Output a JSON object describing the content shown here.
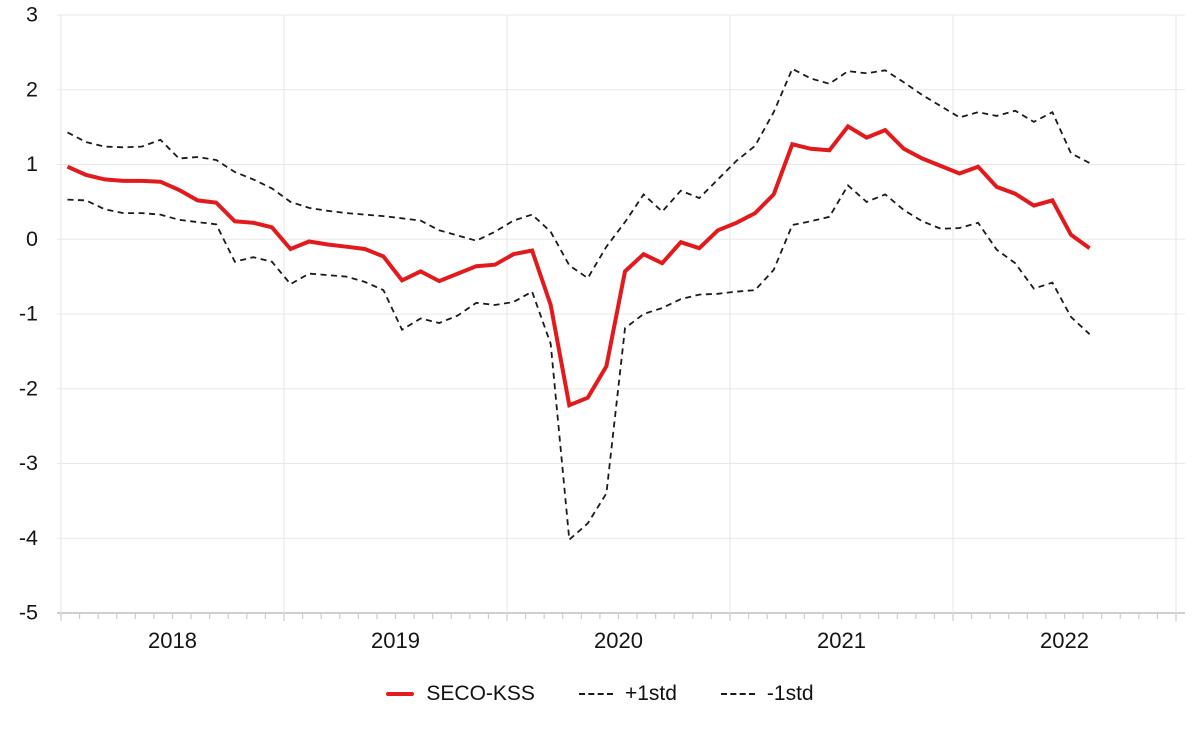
{
  "chart_data": {
    "type": "line",
    "title": "",
    "xlabel": "",
    "ylabel": "",
    "ylim": [
      -5,
      3
    ],
    "y_ticks": [
      3,
      2,
      1,
      0,
      -1,
      -2,
      -3,
      -4,
      -5
    ],
    "x_tick_years": [
      "2018",
      "2019",
      "2020",
      "2021",
      "2022"
    ],
    "grid": true,
    "legend_position": "bottom",
    "x": [
      "2018-01",
      "2018-02",
      "2018-03",
      "2018-04",
      "2018-05",
      "2018-06",
      "2018-07",
      "2018-08",
      "2018-09",
      "2018-10",
      "2018-11",
      "2018-12",
      "2019-01",
      "2019-02",
      "2019-03",
      "2019-04",
      "2019-05",
      "2019-06",
      "2019-07",
      "2019-08",
      "2019-09",
      "2019-10",
      "2019-11",
      "2019-12",
      "2020-01",
      "2020-02",
      "2020-03",
      "2020-04",
      "2020-05",
      "2020-06",
      "2020-07",
      "2020-08",
      "2020-09",
      "2020-10",
      "2020-11",
      "2020-12",
      "2021-01",
      "2021-02",
      "2021-03",
      "2021-04",
      "2021-05",
      "2021-06",
      "2021-07",
      "2021-08",
      "2021-09",
      "2021-10",
      "2021-11",
      "2021-12",
      "2022-01",
      "2022-02",
      "2022-03",
      "2022-04",
      "2022-05",
      "2022-06",
      "2022-07",
      "2022-08"
    ],
    "series": [
      {
        "name": "SECO-KSS",
        "slug": "seco-kss",
        "style": "solid",
        "color": "#e31a1c",
        "width": 4,
        "values": [
          0.97,
          0.86,
          0.8,
          0.78,
          0.78,
          0.77,
          0.66,
          0.52,
          0.49,
          0.24,
          0.22,
          0.16,
          -0.13,
          -0.03,
          -0.07,
          -0.1,
          -0.13,
          -0.23,
          -0.55,
          -0.43,
          -0.56,
          -0.46,
          -0.36,
          -0.34,
          -0.2,
          -0.15,
          -0.88,
          -2.22,
          -2.12,
          -1.7,
          -0.43,
          -0.2,
          -0.32,
          -0.04,
          -0.12,
          0.12,
          0.22,
          0.35,
          0.6,
          1.27,
          1.21,
          1.19,
          1.51,
          1.36,
          1.46,
          1.21,
          1.08,
          0.98,
          0.88,
          0.97,
          0.7,
          0.61,
          0.45,
          0.52,
          0.06,
          -0.12
        ]
      },
      {
        "name": "+1std",
        "slug": "plus1std",
        "style": "dashed",
        "color": "#1a1a1a",
        "width": 1.8,
        "values": [
          1.43,
          1.3,
          1.24,
          1.23,
          1.24,
          1.33,
          1.08,
          1.1,
          1.06,
          0.9,
          0.8,
          0.68,
          0.5,
          0.42,
          0.38,
          0.35,
          0.33,
          0.31,
          0.28,
          0.25,
          0.12,
          0.05,
          -0.02,
          0.1,
          0.25,
          0.33,
          0.1,
          -0.35,
          -0.52,
          -0.1,
          0.23,
          0.6,
          0.37,
          0.65,
          0.55,
          0.8,
          1.05,
          1.25,
          1.7,
          2.28,
          2.15,
          2.08,
          2.25,
          2.22,
          2.26,
          2.1,
          1.93,
          1.78,
          1.63,
          1.7,
          1.65,
          1.72,
          1.57,
          1.7,
          1.15,
          1.02
        ]
      },
      {
        "name": "-1std",
        "slug": "minus1std",
        "style": "dashed",
        "color": "#1a1a1a",
        "width": 1.8,
        "values": [
          0.53,
          0.52,
          0.4,
          0.35,
          0.35,
          0.33,
          0.26,
          0.23,
          0.2,
          -0.3,
          -0.24,
          -0.3,
          -0.6,
          -0.46,
          -0.48,
          -0.5,
          -0.57,
          -0.68,
          -1.21,
          -1.06,
          -1.12,
          -1.02,
          -0.85,
          -0.88,
          -0.84,
          -0.7,
          -1.4,
          -4.02,
          -3.8,
          -3.4,
          -1.19,
          -1.0,
          -0.92,
          -0.8,
          -0.74,
          -0.73,
          -0.7,
          -0.68,
          -0.41,
          0.19,
          0.24,
          0.3,
          0.72,
          0.5,
          0.6,
          0.39,
          0.24,
          0.14,
          0.15,
          0.22,
          -0.14,
          -0.32,
          -0.66,
          -0.58,
          -1.04,
          -1.27
        ]
      }
    ]
  },
  "colors": {
    "background": "#ffffff",
    "grid": "#e8e8e8",
    "axis": "#bfbfbf",
    "tick": "#cccccc",
    "text": "#141414",
    "accent_red": "#e31a1c"
  }
}
